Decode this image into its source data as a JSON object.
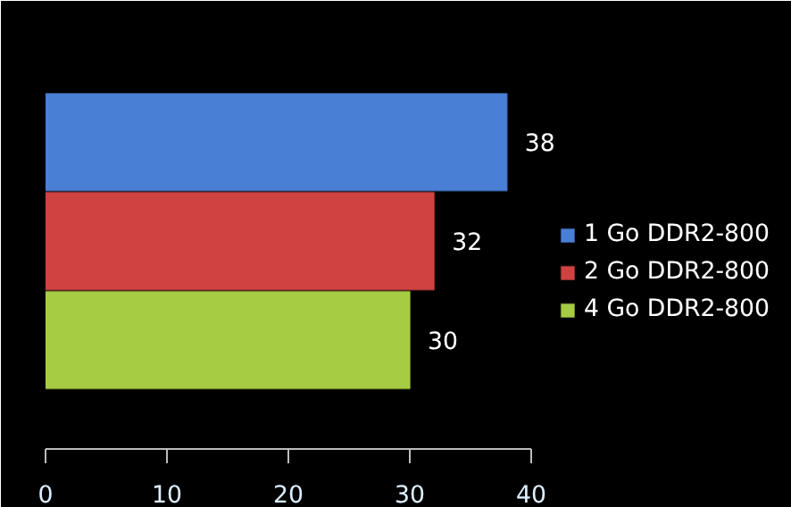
{
  "chart_data": {
    "type": "bar",
    "orientation": "horizontal",
    "categories": [
      null
    ],
    "series": [
      {
        "name": "1 Go DDR2-800",
        "color": "#4a7fd6",
        "values": [
          38
        ]
      },
      {
        "name": "2 Go DDR2-800",
        "color": "#d04242",
        "values": [
          32
        ]
      },
      {
        "name": "4 Go DDR2-800",
        "color": "#a6cc44",
        "values": [
          30
        ]
      }
    ],
    "xlim": [
      0,
      40
    ],
    "xticks": [
      0,
      10,
      20,
      30,
      40
    ],
    "data_labels": true,
    "legend": "right",
    "grid": false
  }
}
